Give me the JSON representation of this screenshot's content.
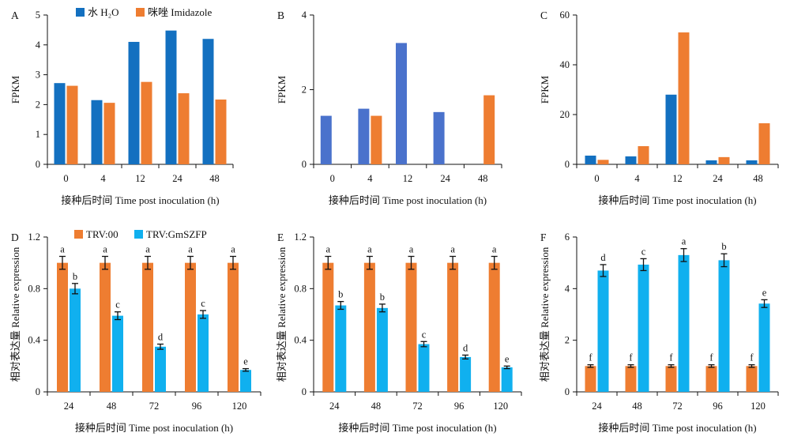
{
  "figure": {
    "colors": {
      "water": "#1370c0",
      "imidazole": "#ee7d31",
      "single_b": "#4a72cc",
      "trv00": "#ee7d31",
      "gmszfp": "#10b0ef"
    }
  },
  "chart_data": [
    {
      "panel": "A",
      "type": "bar",
      "xlabel": "接种后时间 Time post inoculation (h)",
      "ylabel": "FPKM",
      "categories": [
        "0",
        "4",
        "12",
        "24",
        "48"
      ],
      "ylim": [
        0,
        5
      ],
      "yticks": [
        0,
        1,
        2,
        3,
        4,
        5
      ],
      "legend": {
        "placement": "top"
      },
      "series": [
        {
          "name": "水 H₂O",
          "color": "#1370c0",
          "values": [
            2.72,
            2.15,
            4.1,
            4.48,
            4.2
          ]
        },
        {
          "name": "咪唑 Imidazole",
          "color": "#ee7d31",
          "values": [
            2.63,
            2.06,
            2.76,
            2.38,
            2.17
          ]
        }
      ]
    },
    {
      "panel": "B",
      "type": "bar",
      "xlabel": "接种后时间 Time post inoculation (h)",
      "ylabel": "FPKM",
      "categories": [
        "0",
        "4",
        "12",
        "24",
        "48"
      ],
      "ylim": [
        0,
        4
      ],
      "yticks": [
        0,
        2,
        4
      ],
      "series": [
        {
          "color": "#4a72cc",
          "values": [
            1.3,
            1.49,
            3.25,
            1.4,
            null
          ]
        },
        {
          "color": "#ee7d31",
          "values": [
            null,
            1.3,
            null,
            null,
            1.85
          ]
        }
      ]
    },
    {
      "panel": "C",
      "type": "bar",
      "xlabel": "接种后时间 Time post inoculation (h)",
      "ylabel": "FPKM",
      "categories": [
        "0",
        "4",
        "12",
        "24",
        "48"
      ],
      "ylim": [
        0,
        60
      ],
      "yticks": [
        0,
        20,
        40,
        60
      ],
      "series": [
        {
          "color": "#1370c0",
          "values": [
            3.5,
            3.2,
            28,
            1.6,
            1.6
          ]
        },
        {
          "color": "#ee7d31",
          "values": [
            1.8,
            7.3,
            53,
            2.9,
            16.5
          ]
        }
      ]
    },
    {
      "panel": "D",
      "type": "bar",
      "xlabel": "接种后时间 Time post inoculation (h)",
      "ylabel": "相对表达量 Relative expression",
      "categories": [
        "24",
        "48",
        "72",
        "96",
        "120"
      ],
      "ylim": [
        0,
        1.2
      ],
      "yticks": [
        0,
        0.4,
        0.8,
        1.2
      ],
      "ytick_labels": [
        "0",
        "0.4",
        "0.8",
        "1.2"
      ],
      "legend": {
        "placement": "top"
      },
      "series": [
        {
          "name": "TRV:00",
          "color": "#ee7d31",
          "values": [
            1.0,
            1.0,
            1.0,
            1.0,
            1.0
          ],
          "errors": [
            0.05,
            0.05,
            0.05,
            0.05,
            0.05
          ],
          "labels": [
            "a",
            "a",
            "a",
            "a",
            "a"
          ]
        },
        {
          "name": "TRV:GmSZFP",
          "color": "#10b0ef",
          "values": [
            0.8,
            0.59,
            0.35,
            0.6,
            0.17
          ],
          "errors": [
            0.04,
            0.03,
            0.02,
            0.03,
            0.01
          ],
          "labels": [
            "b",
            "c",
            "d",
            "c",
            "e"
          ]
        }
      ]
    },
    {
      "panel": "E",
      "type": "bar",
      "xlabel": "接种后时间 Time post inoculation (h)",
      "ylabel": "相对表达量 Relative expression",
      "categories": [
        "24",
        "48",
        "72",
        "96",
        "120"
      ],
      "ylim": [
        0,
        1.2
      ],
      "yticks": [
        0,
        0.4,
        0.8,
        1.2
      ],
      "ytick_labels": [
        "0",
        "0.4",
        "0.8",
        "1.2"
      ],
      "series": [
        {
          "color": "#ee7d31",
          "values": [
            1.0,
            1.0,
            1.0,
            1.0,
            1.0
          ],
          "errors": [
            0.05,
            0.05,
            0.05,
            0.05,
            0.05
          ],
          "labels": [
            "a",
            "a",
            "a",
            "a",
            "a"
          ]
        },
        {
          "color": "#10b0ef",
          "values": [
            0.67,
            0.65,
            0.37,
            0.27,
            0.19
          ],
          "errors": [
            0.03,
            0.03,
            0.02,
            0.015,
            0.01
          ],
          "labels": [
            "b",
            "b",
            "c",
            "d",
            "e"
          ]
        }
      ]
    },
    {
      "panel": "F",
      "type": "bar",
      "xlabel": "接种后时间 Time post inoculation (h)",
      "ylabel": "相对表达量 Relative expression",
      "categories": [
        "24",
        "48",
        "72",
        "96",
        "120"
      ],
      "ylim": [
        0,
        6
      ],
      "yticks": [
        0,
        2,
        4,
        6
      ],
      "series": [
        {
          "color": "#ee7d31",
          "values": [
            1.0,
            1.0,
            1.0,
            1.0,
            1.0
          ],
          "errors": [
            0.05,
            0.05,
            0.05,
            0.05,
            0.05
          ],
          "labels": [
            "f",
            "f",
            "f",
            "f",
            "f"
          ]
        },
        {
          "color": "#10b0ef",
          "values": [
            4.7,
            4.93,
            5.3,
            5.1,
            3.42
          ],
          "errors": [
            0.23,
            0.23,
            0.25,
            0.25,
            0.15
          ],
          "labels": [
            "d",
            "c",
            "a",
            "b",
            "e"
          ]
        }
      ]
    }
  ]
}
